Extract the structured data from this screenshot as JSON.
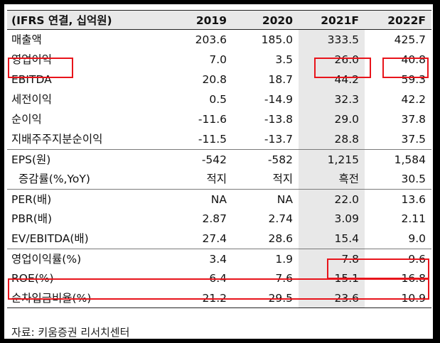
{
  "table": {
    "unit_label": "(IFRS 연결, 십억원)",
    "years": [
      "2019",
      "2020",
      "2021F",
      "2022F"
    ],
    "rows": [
      {
        "label": "매출액",
        "values": [
          "203.6",
          "185.0",
          "333.5",
          "425.7"
        ]
      },
      {
        "label": "영업이익",
        "values": [
          "7.0",
          "3.5",
          "26.0",
          "40.8"
        ]
      },
      {
        "label": "EBITDA",
        "values": [
          "20.8",
          "18.7",
          "44.2",
          "59.3"
        ]
      },
      {
        "label": "세전이익",
        "values": [
          "0.5",
          "-14.9",
          "32.3",
          "42.2"
        ]
      },
      {
        "label": "순이익",
        "values": [
          "-11.6",
          "-13.8",
          "29.0",
          "37.8"
        ]
      },
      {
        "label": "지배주주지분순이익",
        "values": [
          "-11.5",
          "-13.7",
          "28.8",
          "37.5"
        ]
      },
      {
        "label": "EPS(원)",
        "values": [
          "-542",
          "-582",
          "1,215",
          "1,584"
        ]
      },
      {
        "label": "증감률(%,YoY)",
        "values": [
          "적지",
          "적지",
          "흑전",
          "30.5"
        ]
      },
      {
        "label": "PER(배)",
        "values": [
          "NA",
          "NA",
          "22.0",
          "13.6"
        ]
      },
      {
        "label": "PBR(배)",
        "values": [
          "2.87",
          "2.74",
          "3.09",
          "2.11"
        ]
      },
      {
        "label": "EV/EBITDA(배)",
        "values": [
          "27.4",
          "28.6",
          "15.4",
          "9.0"
        ]
      },
      {
        "label": "영업이익률(%)",
        "values": [
          "3.4",
          "1.9",
          "7.8",
          "9.6"
        ]
      },
      {
        "label": "ROE(%)",
        "values": [
          "-6.4",
          "-7.6",
          "15.1",
          "16.8"
        ]
      },
      {
        "label": "순차입금비율(%)",
        "values": [
          "21.2",
          "29.5",
          "23.6",
          "10.9"
        ]
      }
    ]
  },
  "source_note": "자료: 키움증권 리서치센터",
  "colors": {
    "highlight": "#e8141b",
    "shade": "#e8e8e8",
    "frame": "#000000"
  }
}
